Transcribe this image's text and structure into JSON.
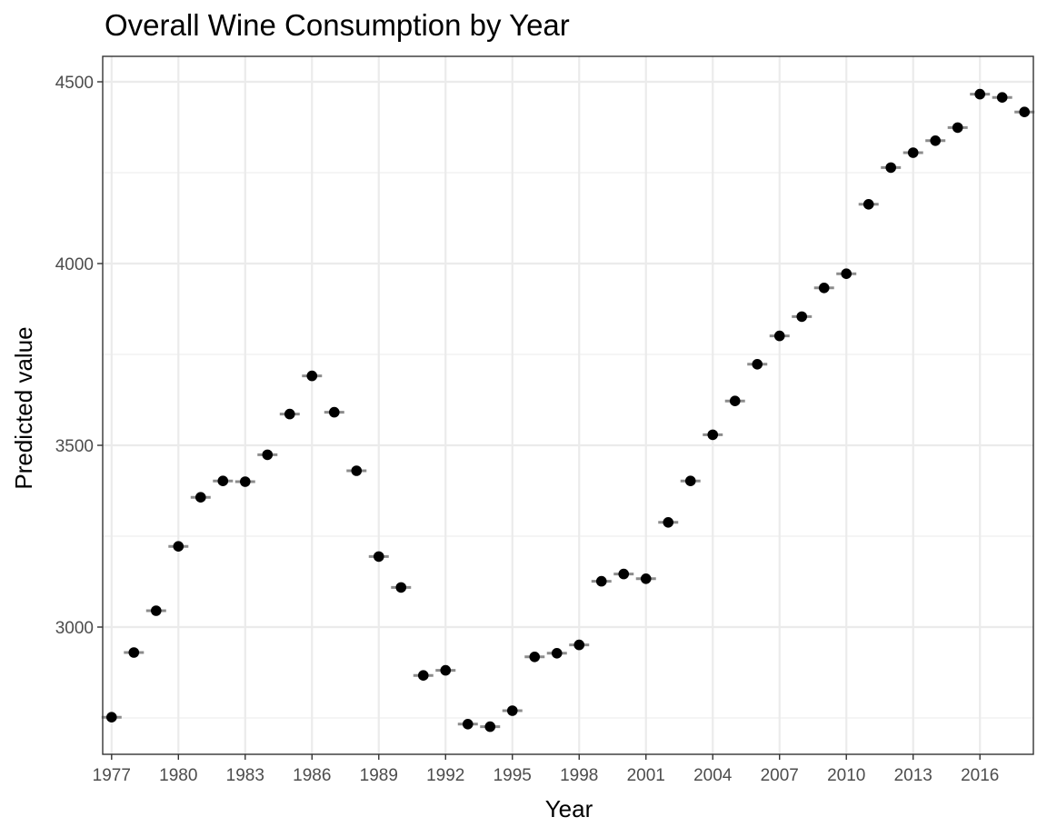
{
  "chart_data": {
    "type": "scatter",
    "title": "Overall Wine Consumption by Year",
    "xlabel": "Year",
    "ylabel": "Predicted value",
    "xlim": [
      1976.6,
      2018.4
    ],
    "ylim": [
      2650,
      4570
    ],
    "x_ticks": [
      1977,
      1980,
      1983,
      1986,
      1989,
      1992,
      1995,
      1998,
      2001,
      2004,
      2007,
      2010,
      2013,
      2016
    ],
    "x_tick_labels": [
      "1977",
      "1980",
      "1983",
      "1986",
      "1989",
      "1992",
      "1995",
      "1998",
      "2001",
      "2004",
      "2007",
      "2010",
      "2013",
      "2016"
    ],
    "y_ticks": [
      3000,
      3500,
      4000,
      4500
    ],
    "y_tick_labels": [
      "3000",
      "3500",
      "4000",
      "4500"
    ],
    "y_minor_ticks": [
      2750,
      3250,
      3750,
      4250
    ],
    "grid": true,
    "legend": "none",
    "error_bars": "horizontal line at each point",
    "series": [
      {
        "x": [
          1977,
          1978,
          1979,
          1980,
          1981,
          1982,
          1983,
          1984,
          1985,
          1986,
          1987,
          1988,
          1989,
          1990,
          1991,
          1992,
          1993,
          1994,
          1995,
          1996,
          1997,
          1998,
          1999,
          2000,
          2001,
          2002,
          2003,
          2004,
          2005,
          2006,
          2007,
          2008,
          2009,
          2010,
          2011,
          2012,
          2013,
          2014,
          2015,
          2016,
          2017,
          2018
        ],
        "y": [
          2752,
          2930,
          3045,
          3222,
          3357,
          3402,
          3400,
          3474,
          3586,
          3691,
          3591,
          3430,
          3194,
          3109,
          2867,
          2881,
          2733,
          2726,
          2770,
          2918,
          2928,
          2951,
          3126,
          3146,
          3133,
          3288,
          3402,
          3529,
          3622,
          3723,
          3801,
          3854,
          3933,
          3972,
          4163,
          4264,
          4305,
          4338,
          4374,
          4466,
          4457,
          4417
        ]
      }
    ]
  }
}
